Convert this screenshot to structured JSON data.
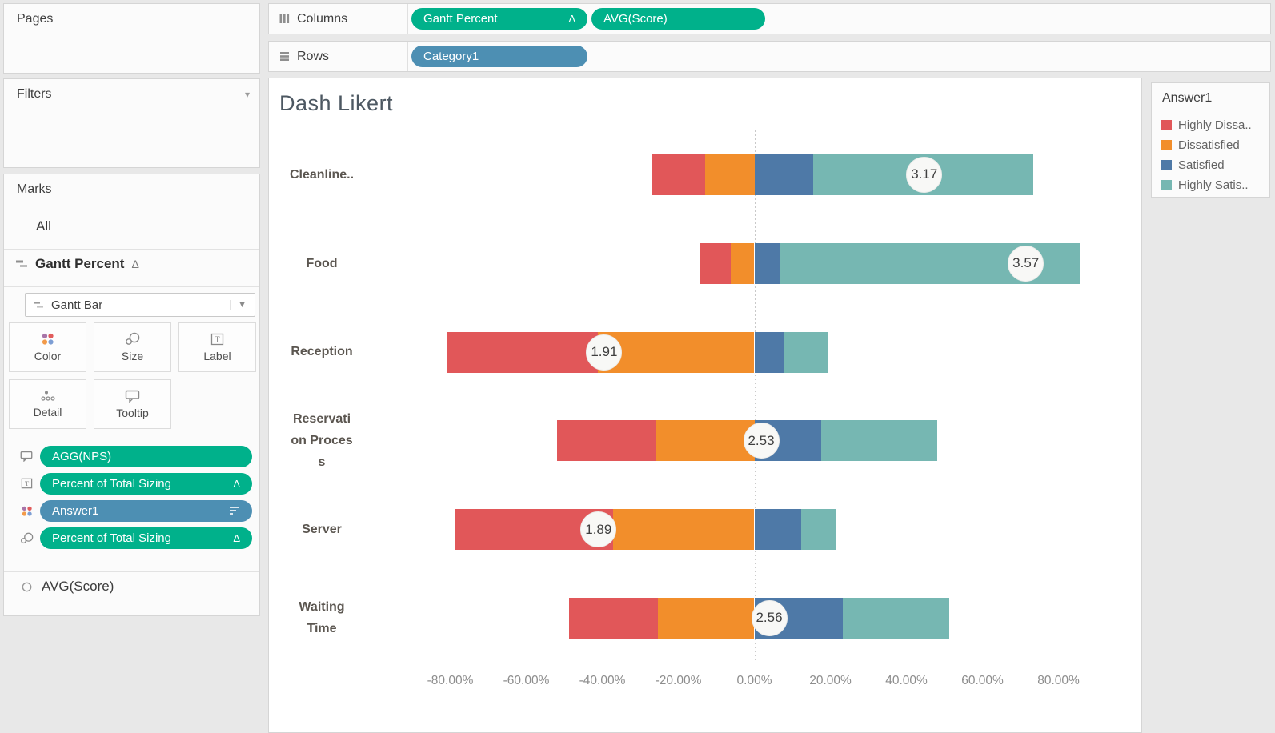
{
  "colors": {
    "pill_green": "#00b18b",
    "pill_blue": "#4d8fb3",
    "highly_dissatisfied": "#e15759",
    "dissatisfied": "#f28e2b",
    "satisfied": "#4e79a7",
    "highly_satisfied": "#76b7b2"
  },
  "shelves": {
    "columns": {
      "label": "Columns",
      "pills": [
        {
          "text": "Gantt Percent",
          "delta": "Δ"
        },
        {
          "text": "AVG(Score)",
          "delta": ""
        }
      ]
    },
    "rows": {
      "label": "Rows",
      "pills": [
        {
          "text": "Category1"
        }
      ]
    }
  },
  "panels": {
    "pages": {
      "title": "Pages"
    },
    "filters": {
      "title": "Filters"
    },
    "marks": {
      "title": "Marks",
      "all_tab": "All",
      "active_mark_title": "Gantt Percent",
      "active_mark_delta": "Δ",
      "mark_type": "Gantt Bar",
      "buttons": {
        "color": "Color",
        "size": "Size",
        "label": "Label",
        "detail": "Detail",
        "tooltip": "Tooltip"
      },
      "pills": [
        {
          "icon": "tooltip",
          "text": "AGG(NPS)",
          "delta": ""
        },
        {
          "icon": "label",
          "text": "Percent of Total Sizing",
          "delta": "Δ"
        },
        {
          "icon": "color",
          "text": "Answer1",
          "delta": ""
        },
        {
          "icon": "size",
          "text": "Percent of Total Sizing",
          "delta": "Δ"
        }
      ],
      "secondary_mark": "AVG(Score)"
    }
  },
  "legend": {
    "title": "Answer1",
    "items": [
      {
        "label": "Highly Dissa..",
        "color": "#e15759"
      },
      {
        "label": "Dissatisfied",
        "color": "#f28e2b"
      },
      {
        "label": "Satisfied",
        "color": "#4e79a7"
      },
      {
        "label": "Highly Satis..",
        "color": "#76b7b2"
      }
    ]
  },
  "chart_data": {
    "type": "bar",
    "subtype": "diverging-stacked-likert-gantt",
    "title": "Dash Likert",
    "xlabel": "",
    "ylabel": "",
    "x_axis_range_pct": [
      -95,
      102
    ],
    "grid": "zero-line-only",
    "legend_position": "right",
    "colors": [
      "#e15759",
      "#f28e2b",
      "#4e79a7",
      "#76b7b2"
    ],
    "series": [
      {
        "key": "highly-dissatisfied",
        "name": "Highly Dissatisfied",
        "legend_label": "Highly Dissa.."
      },
      {
        "key": "dissatisfied",
        "name": "Dissatisfied",
        "legend_label": "Dissatisfied"
      },
      {
        "key": "satisfied",
        "name": "Satisfied",
        "legend_label": "Satisfied"
      },
      {
        "key": "highly-satisfied",
        "name": "Highly Satisfied",
        "legend_label": "Highly Satis.."
      }
    ],
    "rows": [
      {
        "label": "Cleanline..",
        "segments_pct": [
          [
            -27.1,
            -13.0
          ],
          [
            -13.0,
            0.0
          ],
          [
            0.0,
            15.5
          ],
          [
            15.5,
            73.3
          ]
        ],
        "score": 3.17,
        "score_label": "3.17",
        "score_pct": 44.7
      },
      {
        "label": "Food",
        "segments_pct": [
          [
            -14.4,
            -6.3
          ],
          [
            -6.3,
            0.0
          ],
          [
            0.0,
            6.7
          ],
          [
            6.7,
            85.6
          ]
        ],
        "score": 3.57,
        "score_label": "3.57",
        "score_pct": 71.4
      },
      {
        "label": "Reception",
        "segments_pct": [
          [
            -81.0,
            -41.1
          ],
          [
            -41.1,
            0.0
          ],
          [
            0.0,
            7.6
          ],
          [
            7.6,
            19.2
          ]
        ],
        "score": 1.91,
        "score_label": "1.91",
        "score_pct": -39.5
      },
      {
        "label": "Reservati\non Proces\ns",
        "segments_pct": [
          [
            -51.9,
            -26.0
          ],
          [
            -26.0,
            0.0
          ],
          [
            0.0,
            17.5
          ],
          [
            17.5,
            48.1
          ]
        ],
        "score": 2.53,
        "score_label": "2.53",
        "score_pct": 1.8
      },
      {
        "label": "Server",
        "segments_pct": [
          [
            -78.6,
            -37.2
          ],
          [
            -37.2,
            0.0
          ],
          [
            0.0,
            12.3
          ],
          [
            12.3,
            21.4
          ]
        ],
        "score": 1.89,
        "score_label": "1.89",
        "score_pct": -41.0
      },
      {
        "label": "Waiting\nTime",
        "segments_pct": [
          [
            -48.8,
            -25.3
          ],
          [
            -25.3,
            0.0
          ],
          [
            0.0,
            23.2
          ],
          [
            23.2,
            51.2
          ]
        ],
        "score": 2.56,
        "score_label": "2.56",
        "score_pct": 3.9
      }
    ],
    "x_ticks": [
      {
        "value": -80,
        "label": "-80.00%"
      },
      {
        "value": -60,
        "label": "-60.00%"
      },
      {
        "value": -40,
        "label": "-40.00%"
      },
      {
        "value": -20,
        "label": "-20.00%"
      },
      {
        "value": 0,
        "label": "0.00%"
      },
      {
        "value": 20,
        "label": "20.00%"
      },
      {
        "value": 40,
        "label": "40.00%"
      },
      {
        "value": 60,
        "label": "60.00%"
      },
      {
        "value": 80,
        "label": "80.00%"
      }
    ]
  }
}
